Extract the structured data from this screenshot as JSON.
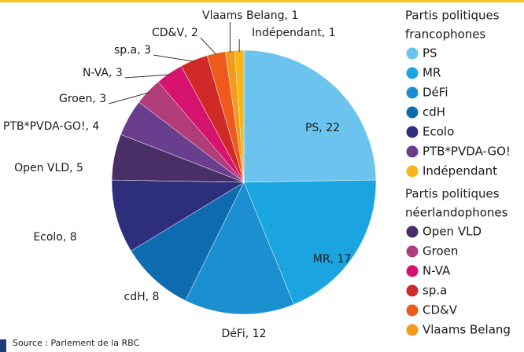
{
  "chart_data": {
    "type": "pie",
    "categories": [
      "PS",
      "MR",
      "DéFi",
      "cdH",
      "Ecolo",
      "Open VLD",
      "PTB*PVDA-GO!",
      "Groen",
      "N-VA",
      "sp.a",
      "CD&V",
      "Vlaams Belang",
      "Indépendant"
    ],
    "values": [
      22,
      17,
      12,
      8,
      8,
      5,
      4,
      3,
      3,
      3,
      2,
      1,
      1
    ],
    "value_labels": [
      "PS, 22",
      "MR, 17",
      "DéFi, 12",
      "cdH, 8",
      "Ecolo, 8",
      "Open VLD, 5",
      "PTB*PVDA-GO!, 4",
      "Groen, 3",
      "N-VA, 3",
      "sp.a, 3",
      "CD&V, 2",
      "Vlaams Belang, 1",
      "Indépendant, 1"
    ],
    "colors": [
      "#6cc4ee",
      "#1aa5e0",
      "#1b8fd0",
      "#0e6bb0",
      "#2d2f7d",
      "#4a2f66",
      "#6a3e8f",
      "#b03c7a",
      "#d6136e",
      "#cf2a28",
      "#ee5a1b",
      "#f39a1c",
      "#f5b51b"
    ],
    "legend": [
      {
        "title": [
          "Partis politiques",
          "francophones"
        ],
        "items": [
          "PS",
          "MR",
          "DéFi",
          "cdH",
          "Ecolo",
          "PTB*PVDA-GO!",
          "Indépendant"
        ]
      },
      {
        "title": [
          "Partis politiques",
          "néerlandophones"
        ],
        "items": [
          "Open VLD",
          "Groen",
          "N-VA",
          "sp.a",
          "CD&V",
          "Vlaams Belang"
        ]
      }
    ],
    "source": "Source : Parlement de la RBC"
  }
}
